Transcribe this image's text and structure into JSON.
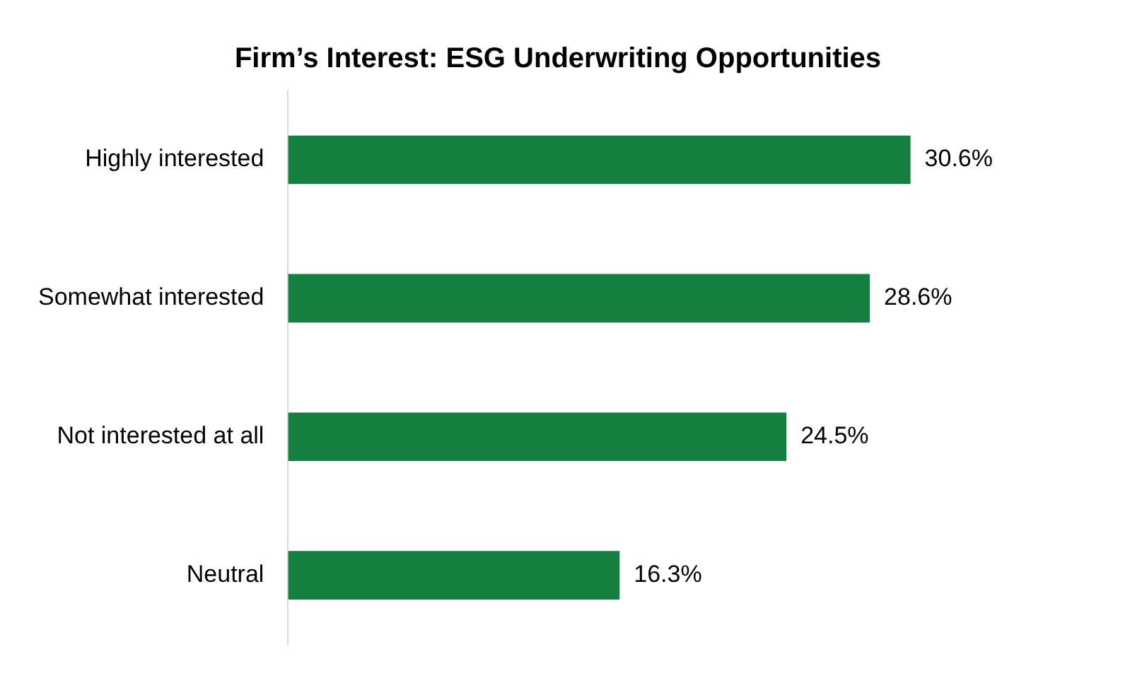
{
  "chart_data": {
    "type": "bar",
    "orientation": "horizontal",
    "title": "Firm’s Interest: ESG Underwriting Opportunities",
    "categories": [
      "Highly interested",
      "Somewhat interested",
      "Not interested at all",
      "Neutral"
    ],
    "values": [
      30.6,
      28.6,
      24.5,
      16.3
    ],
    "value_labels": [
      "30.6%",
      "28.6%",
      "24.5%",
      "16.3%"
    ],
    "color": "#157f3f",
    "tick_labels": "y"
  }
}
